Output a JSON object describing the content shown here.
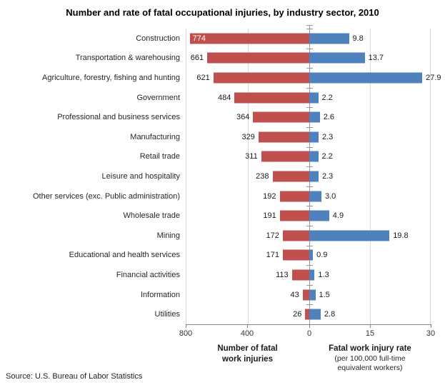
{
  "title": "Number and rate of fatal occupational injuries, by industry sector, 2010",
  "source": "Source: U.S. Bureau of Labor Statistics",
  "colors": {
    "bar_left": "#C0504D",
    "bar_right": "#4F81BD",
    "gridline": "#D9D9D9",
    "zero_axis": "#969696",
    "bottom_axis": "#808080",
    "inside_label": "#FFFFFF"
  },
  "tick_labels": [
    "800",
    "400",
    "0",
    "15",
    "30"
  ],
  "left_axis_title": {
    "line1": "Number of fatal",
    "line2": "work injuries"
  },
  "right_axis_title": {
    "line1": "Fatal work injury rate",
    "sub1": "(per 100,000 full-time",
    "sub2": "equivalent workers)"
  },
  "chart_data": {
    "type": "bar",
    "orientation": "horizontal-diverging",
    "title": "Number and rate of fatal occupational injuries, by industry sector, 2010",
    "grid": true,
    "legend_position": "none",
    "categories": [
      "Construction",
      "Transportation & warehousing",
      "Agriculture, forestry, fishing and hunting",
      "Government",
      "Professional and business services",
      "Manufacturing",
      "Retail trade",
      "Leisure and hospitality",
      "Other services (exc. Public administration)",
      "Wholesale trade",
      "Mining",
      "Educational and health services",
      "Financial activities",
      "Information",
      "Utilities"
    ],
    "series": [
      {
        "name": "Number of fatal work injuries",
        "direction": "left",
        "color": "#C0504D",
        "axis_range": [
          0,
          800
        ],
        "axis_ticks": [
          800,
          400,
          0
        ],
        "values": [
          774,
          661,
          621,
          484,
          364,
          329,
          311,
          238,
          192,
          191,
          172,
          171,
          113,
          43,
          26
        ],
        "value_labels": [
          "774",
          "661",
          "621",
          "484",
          "364",
          "329",
          "311",
          "238",
          "192",
          "191",
          "172",
          "171",
          "113",
          "43",
          "26"
        ]
      },
      {
        "name": "Fatal work injury rate (per 100,000 full-time equivalent workers)",
        "direction": "right",
        "color": "#4F81BD",
        "axis_range": [
          0,
          30
        ],
        "axis_ticks": [
          0,
          15,
          30
        ],
        "values": [
          9.8,
          13.7,
          27.9,
          2.2,
          2.6,
          2.3,
          2.2,
          2.3,
          3.0,
          4.9,
          19.8,
          0.9,
          1.3,
          1.5,
          2.8
        ],
        "value_labels": [
          "9.8",
          "13.7",
          "27.9",
          "2.2",
          "2.6",
          "2.3",
          "2.2",
          "2.3",
          "3.0",
          "4.9",
          "19.8",
          "0.9",
          "1.3",
          "1.5",
          "2.8"
        ]
      }
    ]
  }
}
